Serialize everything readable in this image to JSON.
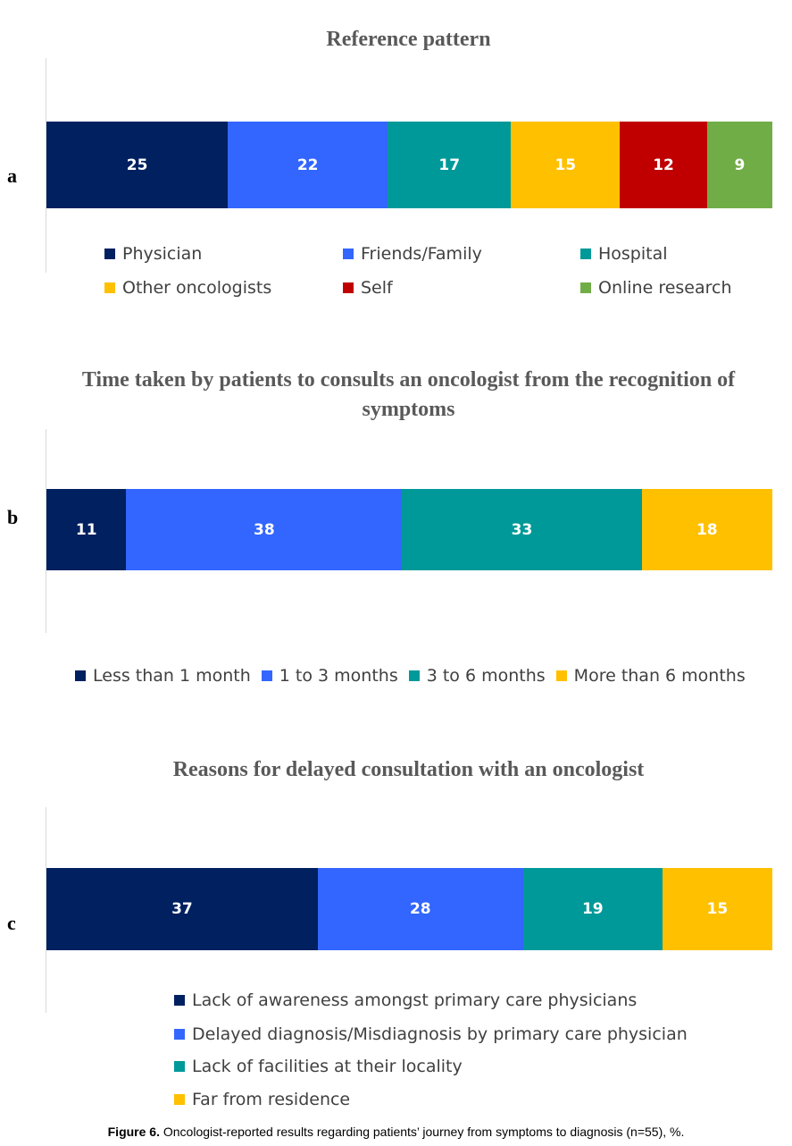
{
  "chart_data": [
    {
      "panel": "a",
      "type": "bar",
      "stacked": true,
      "orientation": "horizontal",
      "title": "Reference pattern",
      "series": [
        {
          "name": "Physician",
          "value": 25,
          "color": "#002060"
        },
        {
          "name": "Friends/Family",
          "value": 22,
          "color": "#3366ff"
        },
        {
          "name": "Hospital",
          "value": 17,
          "color": "#009999"
        },
        {
          "name": "Other oncologists",
          "value": 15,
          "color": "#ffc000"
        },
        {
          "name": "Self",
          "value": 12,
          "color": "#c00000"
        },
        {
          "name": "Online research",
          "value": 9,
          "color": "#70ad47"
        }
      ],
      "legend_placement": "bottom"
    },
    {
      "panel": "b",
      "type": "bar",
      "stacked": true,
      "orientation": "horizontal",
      "title": "Time taken by patients to consults an oncologist from the recognition of symptoms",
      "series": [
        {
          "name": "Less than 1 month",
          "value": 11,
          "color": "#002060"
        },
        {
          "name": "1 to 3 months",
          "value": 38,
          "color": "#3366ff"
        },
        {
          "name": "3 to 6 months",
          "value": 33,
          "color": "#009999"
        },
        {
          "name": "More than 6 months",
          "value": 18,
          "color": "#ffc000"
        }
      ],
      "legend_placement": "bottom"
    },
    {
      "panel": "c",
      "type": "bar",
      "stacked": true,
      "orientation": "horizontal",
      "title": "Reasons for delayed consultation with an oncologist",
      "series": [
        {
          "name": "Lack of awareness amongst primary care physicians",
          "value": 37,
          "color": "#002060"
        },
        {
          "name": "Delayed diagnosis/Misdiagnosis by primary care physician",
          "value": 28,
          "color": "#3366ff"
        },
        {
          "name": "Lack of facilities at their locality",
          "value": 19,
          "color": "#009999"
        },
        {
          "name": "Far from residence",
          "value": 15,
          "color": "#ffc000"
        }
      ],
      "legend_placement": "bottom"
    }
  ],
  "caption": {
    "label": "Figure 6.",
    "text": "Oncologist-reported results regarding patients’ journey from symptoms to diagnosis (n=55), %."
  }
}
